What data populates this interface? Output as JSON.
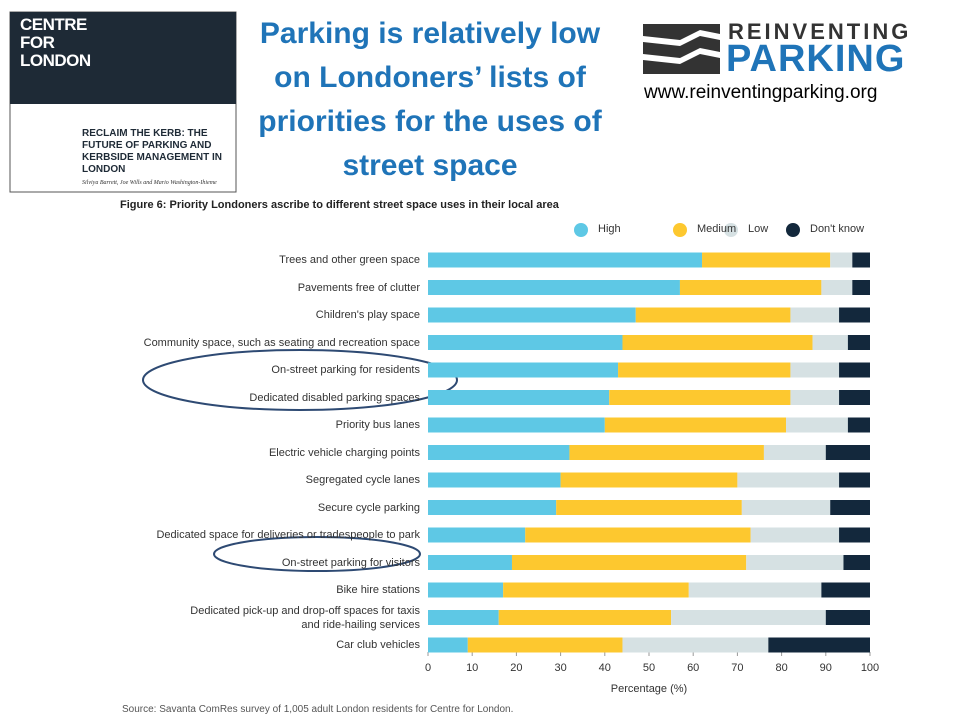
{
  "slide": {
    "title": "Parking is relatively low on Londoners’ lists of priorities for the uses of street space",
    "report": {
      "publisher": "CENTRE\nFOR\nLONDON",
      "title": "RECLAIM THE KERB: THE FUTURE OF PARKING AND KERBSIDE MANAGEMENT IN LONDON",
      "authors": "Silviya Barrett, Joe Wills and Mario Washington-Ihieme"
    },
    "logo": {
      "line1": "REINVENTING",
      "line2": "PARKING",
      "url": "www.reinventingparking.org"
    },
    "source": "Source: Savanta ComRes survey of 1,005 adult London residents for Centre for London."
  },
  "chart_data": {
    "type": "stacked-bar-horizontal",
    "title": "Figure 6: Priority Londoners ascribe to different street space uses in their local area",
    "xlabel": "Percentage (%)",
    "categories": [
      "Trees and other green space",
      "Pavements free of clutter",
      "Children's play space",
      "Community space, such as seating and recreation space",
      "On-street parking for residents",
      "Dedicated disabled parking spaces",
      "Priority bus lanes",
      "Electric vehicle charging points",
      "Segregated cycle lanes",
      "Secure cycle parking",
      "Dedicated space for deliveries or tradespeople to park",
      "On-street parking for visitors",
      "Bike hire stations",
      "Dedicated pick-up and drop-off spaces for taxis\nand ride-hailing services",
      "Car club vehicles"
    ],
    "series": [
      {
        "name": "High",
        "color": "#5ec8e5",
        "values": [
          62,
          57,
          47,
          44,
          43,
          41,
          40,
          32,
          30,
          29,
          22,
          19,
          17,
          16,
          9
        ]
      },
      {
        "name": "Medium",
        "color": "#fdc82f",
        "values": [
          29,
          32,
          35,
          43,
          39,
          41,
          41,
          44,
          40,
          42,
          51,
          53,
          42,
          39,
          35
        ]
      },
      {
        "name": "Low",
        "color": "#d6e1e3",
        "values": [
          5,
          7,
          11,
          8,
          11,
          11,
          14,
          14,
          23,
          20,
          20,
          22,
          30,
          35,
          33
        ]
      },
      {
        "name": "Don't know",
        "color": "#13283c",
        "values": [
          4,
          4,
          7,
          5,
          7,
          7,
          5,
          10,
          7,
          9,
          7,
          6,
          11,
          10,
          23
        ]
      }
    ],
    "xlim": [
      0,
      100
    ],
    "xticks": [
      0,
      10,
      20,
      30,
      40,
      50,
      60,
      70,
      80,
      90,
      100
    ],
    "legend": "top-right"
  }
}
